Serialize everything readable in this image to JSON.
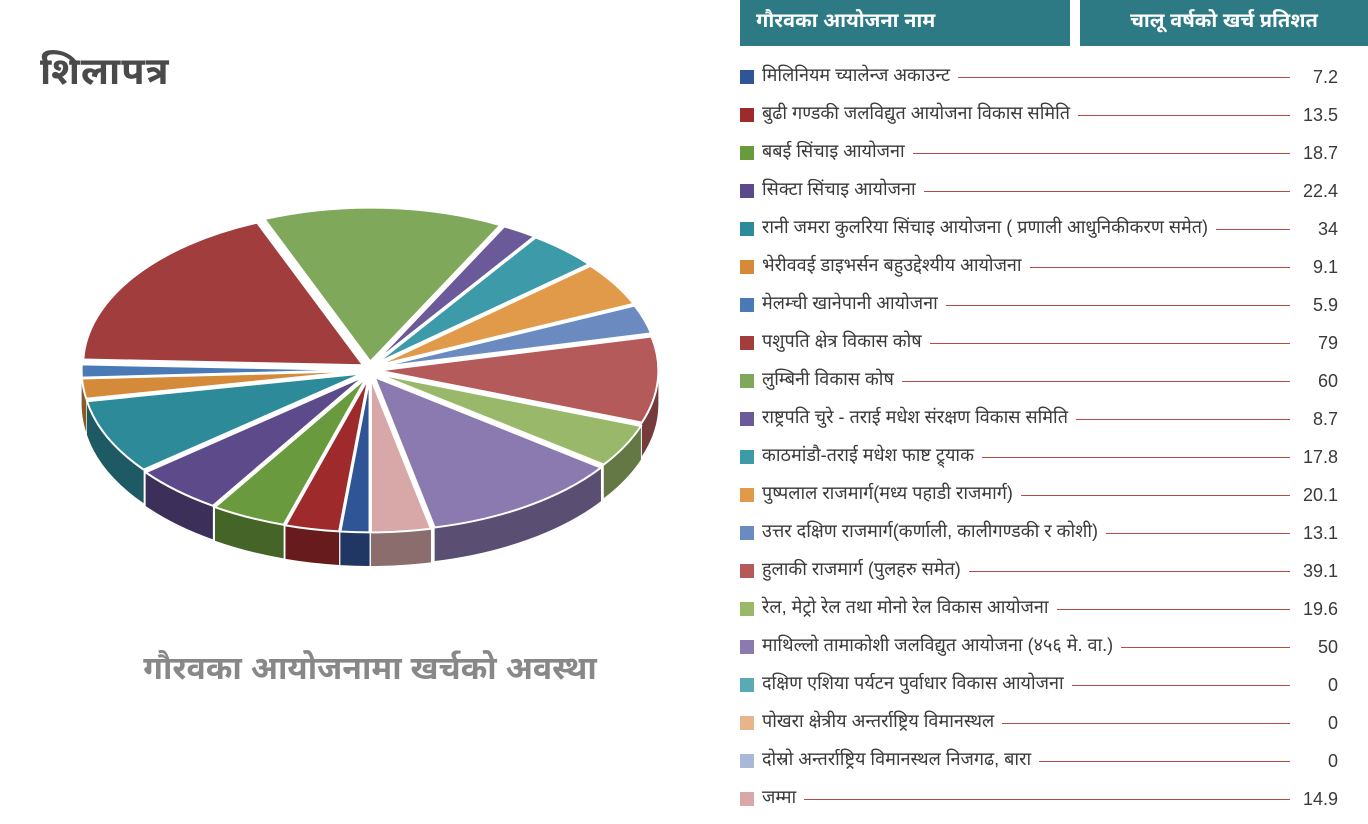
{
  "brand": "शिलापत्र",
  "chart": {
    "type": "pie",
    "title": "गौरवका आयोजनामा खर्चको अवस्था",
    "title_fontsize": 32,
    "title_color": "#888888",
    "background_color": "#ffffff",
    "explode": 0.03,
    "depth_ratio": 0.12,
    "tilt": 0.55,
    "start_angle": 90,
    "edge_color": "#ffffff",
    "edge_width": 2
  },
  "table": {
    "header_bg": "#2d7a85",
    "header_fg": "#ffffff",
    "header_name": "गौरवका आयोजना नाम",
    "header_value": "चालू वर्षको खर्च प्रतिशत",
    "leader_color": "#b94a48",
    "label_color": "#3a3a3a",
    "row_fontsize": 18,
    "swatch_size": 14
  },
  "items": [
    {
      "label": "मिलिनियम च्यालेन्ज अकाउन्ट",
      "value": 7.2,
      "color": "#2f5597"
    },
    {
      "label": "बुढी गण्डकी जलविद्युत आयोजना विकास समिति",
      "value": 13.5,
      "color": "#9e2a2b"
    },
    {
      "label": "बबई सिंचाइ आयोजना",
      "value": 18.7,
      "color": "#6a9a3e"
    },
    {
      "label": "सिक्टा सिंचाइ आयोजना",
      "value": 22.4,
      "color": "#5d4a8a"
    },
    {
      "label": "रानी जमरा कुलरिया सिंचाइ आयोजना ( प्रणाली आधुनिकीकरण समेत)",
      "value": 34,
      "color": "#2d8a99"
    },
    {
      "label": "भेरीववई डाइभर्सन बहुउद्देश्यीय आयोजना",
      "value": 9.1,
      "color": "#d58a3a"
    },
    {
      "label": "मेलम्ची खानेपानी आयोजना",
      "value": 5.9,
      "color": "#4a7ab5"
    },
    {
      "label": "पशुपति क्षेत्र विकास कोष",
      "value": 79,
      "color": "#a13d3d"
    },
    {
      "label": "लुम्बिनी विकास कोष",
      "value": 60,
      "color": "#7fa85a"
    },
    {
      "label": "राष्ट्रपति चुरे - तराई मधेश संरक्षण विकास समिति",
      "value": 8.7,
      "color": "#6b5a9a"
    },
    {
      "label": "काठमांडौ-तराई मधेश फाष्ट ट्र्याक",
      "value": 17.8,
      "color": "#3d9aa8"
    },
    {
      "label": "पुष्पलाल राजमार्ग(मध्य पहाडी राजमार्ग)",
      "value": 20.1,
      "color": "#e09a4a"
    },
    {
      "label": "उत्तर दक्षिण राजमार्ग(कर्णाली, कालीगण्डकी र कोशी)",
      "value": 13.1,
      "color": "#6a8ac0"
    },
    {
      "label": "हुलाकी राजमार्ग (पुलहरु समेत)",
      "value": 39.1,
      "color": "#b55a5a"
    },
    {
      "label": "रेल, मेट्रो रेल तथा मोनो रेल विकास आयोजना",
      "value": 19.6,
      "color": "#9ab86a"
    },
    {
      "label": "माथिल्लो तामाकोशी जलविद्युत आयोजना (४५६ मे. वा.)",
      "value": 50,
      "color": "#8a7ab0"
    },
    {
      "label": "दक्षिण एशिया पर्यटन पुर्वाधार विकास आयोजना",
      "value": 0,
      "color": "#5aaab5"
    },
    {
      "label": "पोखरा क्षेत्रीय अन्तर्राष्ट्रिय विमानस्थल",
      "value": 0,
      "color": "#e8b58a"
    },
    {
      "label": "दोस्रो अन्तर्राष्ट्रिय विमानस्थल निजगढ, बारा",
      "value": 0,
      "color": "#a8b8d8"
    },
    {
      "label": "जम्मा",
      "value": 14.9,
      "color": "#d8a8a8"
    }
  ]
}
